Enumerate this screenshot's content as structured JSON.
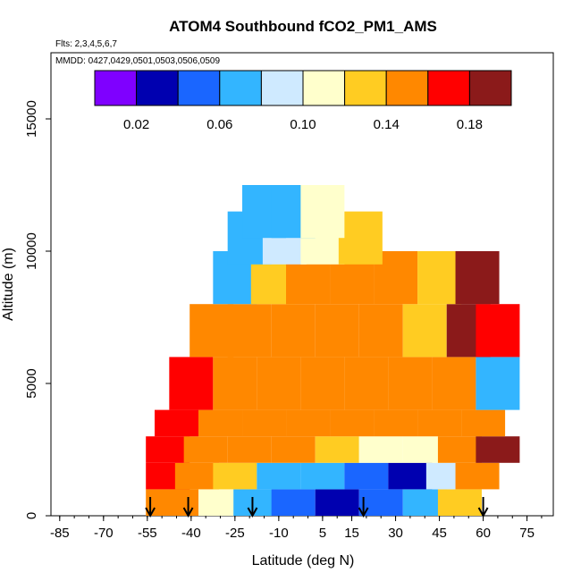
{
  "chart_data": {
    "type": "heatmap",
    "title": "ATOM4 Southbound fCO2_PM1_AMS",
    "subtitle": "Flts: 2,3,4,5,6,7",
    "annotation": "MMDD: 0427,0429,0501,0503,0506,0509",
    "xlabel": "Latitude (deg N)",
    "ylabel": "Altitude (m)",
    "xlim": [
      -88,
      84
    ],
    "ylim": [
      0,
      17500
    ],
    "x_ticks": [
      -85,
      -70,
      -55,
      -40,
      -25,
      -10,
      5,
      15,
      30,
      45,
      60,
      75
    ],
    "y_ticks": [
      0,
      5000,
      10000,
      15000
    ],
    "colorbar": {
      "range": [
        0.0,
        0.2
      ],
      "tick_values": [
        0.02,
        0.06,
        0.1,
        0.14,
        0.18
      ],
      "tick_labels": [
        "0.02",
        "0.06",
        "0.10",
        "0.14",
        "0.18"
      ],
      "colors": [
        "#7f00ff",
        "#0000b0",
        "#1a66ff",
        "#33b5ff",
        "#cfeaff",
        "#ffffcc",
        "#ffcc22",
        "#ff8800",
        "#ff0000",
        "#8b1a1a"
      ]
    },
    "arrow_latitudes": [
      -54,
      -41,
      -19,
      19,
      60
    ],
    "cells": [
      [
        -48,
        500,
        0.16
      ],
      [
        -40,
        500,
        0.15
      ],
      [
        -30,
        500,
        0.11
      ],
      [
        -18,
        500,
        0.07
      ],
      [
        -5,
        500,
        0.05
      ],
      [
        10,
        500,
        0.04
      ],
      [
        25,
        500,
        0.05
      ],
      [
        40,
        500,
        0.08
      ],
      [
        52,
        500,
        0.12
      ],
      [
        -48,
        1500,
        0.17
      ],
      [
        -38,
        1500,
        0.16
      ],
      [
        -25,
        1500,
        0.13
      ],
      [
        -10,
        1500,
        0.08
      ],
      [
        5,
        1500,
        0.06
      ],
      [
        20,
        1500,
        0.05
      ],
      [
        35,
        1500,
        0.04
      ],
      [
        48,
        1500,
        0.09
      ],
      [
        58,
        1500,
        0.15
      ],
      [
        -48,
        2500,
        0.17
      ],
      [
        -35,
        2500,
        0.16
      ],
      [
        -20,
        2500,
        0.15
      ],
      [
        -5,
        2500,
        0.14
      ],
      [
        10,
        2500,
        0.12
      ],
      [
        25,
        2500,
        0.1
      ],
      [
        40,
        2500,
        0.11
      ],
      [
        52,
        2500,
        0.16
      ],
      [
        65,
        2500,
        0.18
      ],
      [
        -45,
        3500,
        0.17
      ],
      [
        -30,
        3500,
        0.16
      ],
      [
        -15,
        3500,
        0.16
      ],
      [
        0,
        3500,
        0.16
      ],
      [
        15,
        3500,
        0.15
      ],
      [
        30,
        3500,
        0.15
      ],
      [
        45,
        3500,
        0.16
      ],
      [
        60,
        3500,
        0.15
      ],
      [
        -40,
        5000,
        0.17
      ],
      [
        -25,
        5000,
        0.15
      ],
      [
        -10,
        5000,
        0.15
      ],
      [
        5,
        5000,
        0.15
      ],
      [
        20,
        5000,
        0.15
      ],
      [
        35,
        5000,
        0.14
      ],
      [
        50,
        5000,
        0.15
      ],
      [
        65,
        5000,
        0.07
      ],
      [
        -33,
        7000,
        0.14
      ],
      [
        -20,
        7000,
        0.14
      ],
      [
        -5,
        7000,
        0.15
      ],
      [
        10,
        7000,
        0.15
      ],
      [
        25,
        7000,
        0.15
      ],
      [
        40,
        7000,
        0.13
      ],
      [
        55,
        7000,
        0.18
      ],
      [
        65,
        7000,
        0.17
      ],
      [
        -25,
        9000,
        0.08
      ],
      [
        -12,
        9000,
        0.12
      ],
      [
        0,
        9000,
        0.15
      ],
      [
        15,
        9000,
        0.15
      ],
      [
        30,
        9000,
        0.14
      ],
      [
        45,
        9000,
        0.13
      ],
      [
        58,
        9000,
        0.18
      ],
      [
        -20,
        10500,
        0.07
      ],
      [
        -8,
        10500,
        0.09
      ],
      [
        5,
        10500,
        0.11
      ],
      [
        18,
        10500,
        0.13
      ],
      [
        -15,
        11500,
        0.06
      ],
      [
        -5,
        11500,
        0.07
      ],
      [
        5,
        11500,
        0.1
      ]
    ]
  }
}
